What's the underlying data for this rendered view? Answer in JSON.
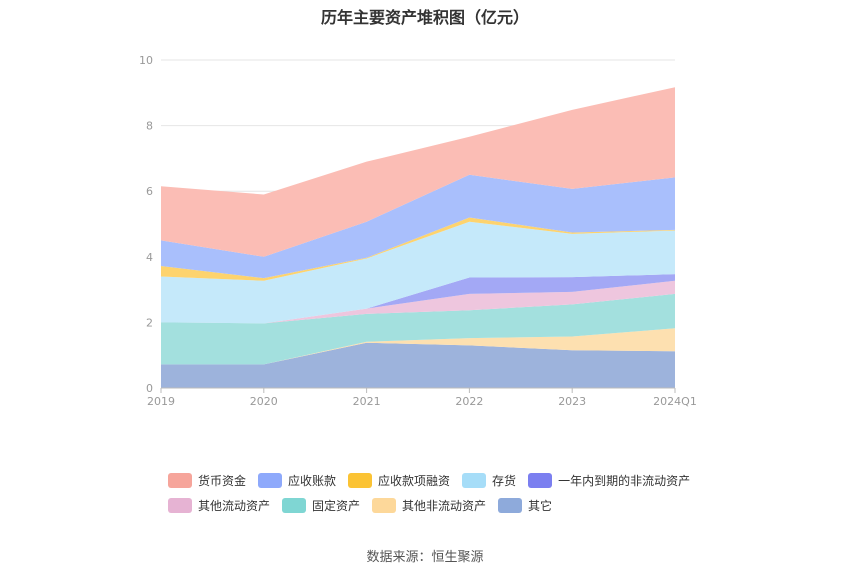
{
  "chart_data": {
    "type": "area",
    "title": "历年主要资产堆积图（亿元）",
    "categories": [
      "2019",
      "2020",
      "2021",
      "2022",
      "2023",
      "2024Q1"
    ],
    "ylim": [
      0,
      10
    ],
    "yticks": [
      0,
      2,
      4,
      6,
      8,
      10
    ],
    "grid": true,
    "legend_position": "bottom",
    "series": [
      {
        "name": "其它",
        "color": "#9db3dc",
        "values": [
          0.72,
          0.72,
          1.38,
          1.3,
          1.15,
          1.12
        ]
      },
      {
        "name": "其他非流动资产",
        "color": "#fde0b0",
        "values": [
          0.0,
          0.0,
          0.03,
          0.22,
          0.42,
          0.7
        ]
      },
      {
        "name": "固定资产",
        "color": "#a3e0de",
        "values": [
          1.28,
          1.25,
          0.85,
          0.85,
          0.98,
          1.05
        ]
      },
      {
        "name": "其他流动资产",
        "color": "#eec6de",
        "values": [
          0.0,
          0.0,
          0.16,
          0.5,
          0.38,
          0.4
        ]
      },
      {
        "name": "一年内到期的非流动资产",
        "color": "#a3a8f5",
        "values": [
          0.0,
          0.0,
          0.0,
          0.5,
          0.45,
          0.2
        ]
      },
      {
        "name": "存货",
        "color": "#c5e9fa",
        "values": [
          1.4,
          1.3,
          1.53,
          1.7,
          1.32,
          1.33
        ]
      },
      {
        "name": "应收款项融资",
        "color": "#fdd36e",
        "values": [
          0.32,
          0.08,
          0.02,
          0.13,
          0.04,
          0.02
        ]
      },
      {
        "name": "应收账款",
        "color": "#a9bffc",
        "values": [
          0.78,
          0.65,
          1.1,
          1.3,
          1.33,
          1.6
        ]
      },
      {
        "name": "货币资金",
        "color": "#fbbdb5",
        "values": [
          1.65,
          1.9,
          1.83,
          1.16,
          2.41,
          2.75
        ]
      }
    ]
  },
  "legend_items": [
    {
      "label": "货币资金",
      "color": "#f6a59b"
    },
    {
      "label": "应收账款",
      "color": "#8ea9fb"
    },
    {
      "label": "应收款项融资",
      "color": "#fbc334"
    },
    {
      "label": "存货",
      "color": "#a6ddf8"
    },
    {
      "label": "一年内到期的非流动资产",
      "color": "#7b7ff0"
    },
    {
      "label": "其他流动资产",
      "color": "#e6b3d3"
    },
    {
      "label": "固定资产",
      "color": "#7fd6d3"
    },
    {
      "label": "其他非流动资产",
      "color": "#fdd89a"
    },
    {
      "label": "其它",
      "color": "#8eaadb"
    }
  ],
  "source": "数据来源：恒生聚源"
}
